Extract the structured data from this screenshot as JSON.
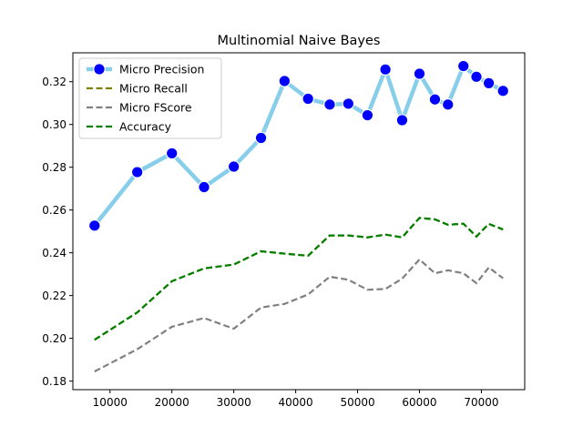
{
  "chart_data": {
    "type": "line",
    "title": "Multinomial Naive Bayes",
    "xlabel": "",
    "ylabel": "",
    "xlim": [
      4000,
      77000
    ],
    "ylim": [
      0.176,
      0.3335
    ],
    "x_ticks": [
      10000,
      20000,
      30000,
      40000,
      50000,
      60000,
      70000
    ],
    "x_tick_labels": [
      "10000",
      "20000",
      "30000",
      "40000",
      "50000",
      "60000",
      "70000"
    ],
    "y_ticks": [
      0.18,
      0.2,
      0.22,
      0.24,
      0.26,
      0.28,
      0.3,
      0.32
    ],
    "y_tick_labels": [
      "0.18",
      "0.20",
      "0.22",
      "0.24",
      "0.26",
      "0.28",
      "0.30",
      "0.32"
    ],
    "grid": false,
    "legend_position": "top-left",
    "x": [
      7500,
      14400,
      20000,
      25200,
      30000,
      34400,
      38200,
      42000,
      45500,
      48500,
      51600,
      54500,
      57200,
      60000,
      62500,
      64600,
      67100,
      69200,
      71200,
      73500
    ],
    "series": [
      {
        "name": "Micro Precision",
        "color": "#87ceeb",
        "marker_color": "#0000ff",
        "style": "solid-markers",
        "values": [
          0.2527,
          0.2777,
          0.2865,
          0.2707,
          0.2803,
          0.2937,
          0.3203,
          0.312,
          0.3093,
          0.3097,
          0.3043,
          0.3257,
          0.302,
          0.3237,
          0.3117,
          0.3093,
          0.3273,
          0.3223,
          0.3193,
          0.3157
        ]
      },
      {
        "name": "Micro Recall",
        "color": "#808000",
        "style": "dashed",
        "values": [
          0.1993,
          0.2121,
          0.2267,
          0.2327,
          0.2345,
          0.2407,
          0.2396,
          0.2386,
          0.2481,
          0.2481,
          0.2472,
          0.2485,
          0.2472,
          0.2563,
          0.2556,
          0.2531,
          0.2536,
          0.2476,
          0.2535,
          0.2509
        ]
      },
      {
        "name": "Micro FScore",
        "color": "#808080",
        "style": "dashed",
        "values": [
          0.1845,
          0.1949,
          0.2054,
          0.2095,
          0.2045,
          0.2144,
          0.2161,
          0.2205,
          0.2288,
          0.2274,
          0.2227,
          0.2231,
          0.2279,
          0.2369,
          0.2304,
          0.2318,
          0.2304,
          0.2258,
          0.2331,
          0.2281
        ]
      },
      {
        "name": "Accuracy",
        "color": "#008000",
        "style": "dashed",
        "values": [
          0.1993,
          0.2121,
          0.2267,
          0.2327,
          0.2345,
          0.2407,
          0.2396,
          0.2386,
          0.2481,
          0.2481,
          0.2472,
          0.2485,
          0.2472,
          0.2563,
          0.2556,
          0.2531,
          0.2536,
          0.2476,
          0.2535,
          0.2509
        ]
      }
    ]
  }
}
